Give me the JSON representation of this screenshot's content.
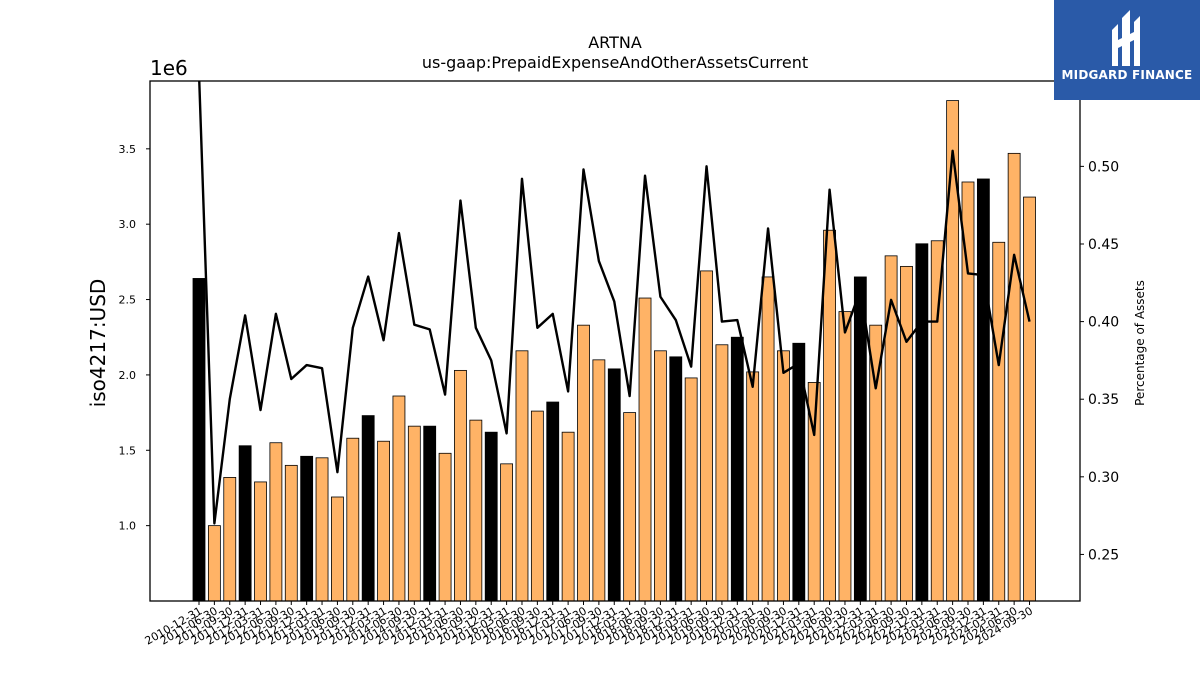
{
  "chart_data": {
    "type": "bar",
    "title": "ARTNA",
    "subtitle": "us-gaap:PrepaidExpenseAndOtherAssetsCurrent",
    "ylabel": "iso4217:USD",
    "y_offset_label": "1e6",
    "y2label": "Percentage of Assets",
    "ylim": [
      500000,
      3950000
    ],
    "y2lim": [
      0.22,
      0.555
    ],
    "yticks": [
      "1.0",
      "1.5",
      "2.0",
      "2.5",
      "3.0",
      "3.5"
    ],
    "y2ticks": [
      "0.25",
      "0.30",
      "0.35",
      "0.40",
      "0.45",
      "0.50"
    ],
    "categories": [
      "2010-12-31",
      "2011-06-30",
      "2011-09-30",
      "2011-12-31",
      "2012-03-31",
      "2012-06-30",
      "2012-09-30",
      "2012-12-31",
      "2013-03-31",
      "2013-06-30",
      "2013-09-30",
      "2013-12-31",
      "2014-03-31",
      "2014-06-30",
      "2014-09-30",
      "2014-12-31",
      "2015-03-31",
      "2015-06-30",
      "2015-09-30",
      "2015-12-31",
      "2016-03-31",
      "2016-06-30",
      "2016-09-30",
      "2016-12-31",
      "2017-03-31",
      "2017-06-30",
      "2017-09-30",
      "2017-12-31",
      "2018-03-31",
      "2018-06-30",
      "2018-09-30",
      "2018-12-31",
      "2019-03-31",
      "2019-06-30",
      "2019-09-30",
      "2019-12-31",
      "2020-03-31",
      "2020-06-30",
      "2020-09-30",
      "2020-12-31",
      "2021-03-31",
      "2021-06-30",
      "2021-09-30",
      "2021-12-31",
      "2022-03-31",
      "2022-06-30",
      "2022-09-30",
      "2022-12-31",
      "2023-03-31",
      "2023-06-30",
      "2023-09-30",
      "2023-12-31",
      "2024-03-31",
      "2024-06-30",
      "2024-09-30"
    ],
    "values": [
      2640000,
      1000000,
      1320000,
      1530000,
      1290000,
      1550000,
      1400000,
      1460000,
      1450000,
      1190000,
      1580000,
      1730000,
      1560000,
      1860000,
      1660000,
      1660000,
      1480000,
      2030000,
      1700000,
      1620000,
      1410000,
      2160000,
      1760000,
      1820000,
      1620000,
      2330000,
      2100000,
      2040000,
      1750000,
      2510000,
      2160000,
      2120000,
      1980000,
      2690000,
      2200000,
      2250000,
      2020000,
      2650000,
      2160000,
      2210000,
      1950000,
      2960000,
      2420000,
      2650000,
      2330000,
      2790000,
      2720000,
      2870000,
      2890000,
      3820000,
      3280000,
      3300000,
      2880000,
      3470000,
      3180000
    ],
    "bar_colors": [
      "#000000",
      "#ffb366",
      "#ffb366",
      "#000000",
      "#ffb366",
      "#ffb366",
      "#ffb366",
      "#000000",
      "#ffb366",
      "#ffb366",
      "#ffb366",
      "#000000",
      "#ffb366",
      "#ffb366",
      "#ffb366",
      "#000000",
      "#ffb366",
      "#ffb366",
      "#ffb366",
      "#000000",
      "#ffb366",
      "#ffb366",
      "#ffb366",
      "#000000",
      "#ffb366",
      "#ffb366",
      "#ffb366",
      "#000000",
      "#ffb366",
      "#ffb366",
      "#ffb366",
      "#000000",
      "#ffb366",
      "#ffb366",
      "#ffb366",
      "#000000",
      "#ffb366",
      "#ffb366",
      "#ffb366",
      "#000000",
      "#ffb366",
      "#ffb366",
      "#ffb366",
      "#000000",
      "#ffb366",
      "#ffb366",
      "#ffb366",
      "#000000",
      "#ffb366",
      "#ffb366",
      "#ffb366",
      "#000000",
      "#ffb366",
      "#ffb366",
      "#ffb366"
    ],
    "line_series": {
      "axis": "right",
      "color": "#000000",
      "values": [
        0.56,
        0.27,
        0.35,
        0.404,
        0.343,
        0.405,
        0.363,
        0.372,
        0.37,
        0.303,
        0.396,
        0.429,
        0.388,
        0.457,
        0.398,
        0.395,
        0.353,
        0.478,
        0.396,
        0.375,
        0.328,
        0.492,
        0.396,
        0.405,
        0.355,
        0.498,
        0.439,
        0.413,
        0.352,
        0.494,
        0.416,
        0.401,
        0.371,
        0.5,
        0.4,
        0.401,
        0.358,
        0.46,
        0.367,
        0.373,
        0.327,
        0.485,
        0.393,
        0.42,
        0.357,
        0.414,
        0.387,
        0.4,
        0.4,
        0.51,
        0.431,
        0.43,
        0.372,
        0.443,
        0.4
      ]
    },
    "grid": false
  },
  "logo": {
    "text": "MIDGARD FINANCE",
    "color": "#2a5aa8"
  }
}
